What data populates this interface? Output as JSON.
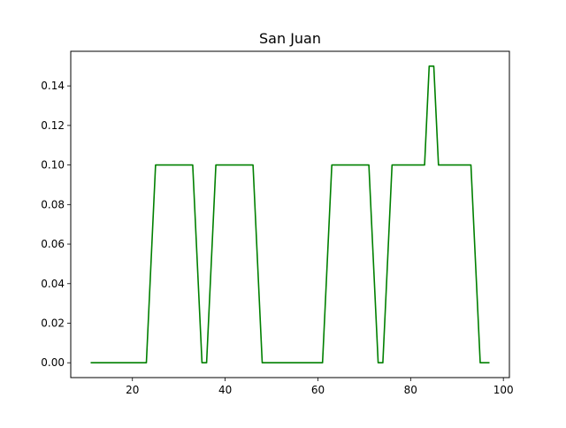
{
  "chart_data": {
    "type": "line",
    "title": "San Juan",
    "xlabel": "",
    "ylabel": "",
    "xlim": [
      6.7,
      101.3
    ],
    "ylim": [
      -0.0075,
      0.1575
    ],
    "grid": false,
    "x_ticks": [
      {
        "value": 20,
        "label": "20"
      },
      {
        "value": 40,
        "label": "40"
      },
      {
        "value": 60,
        "label": "60"
      },
      {
        "value": 80,
        "label": "80"
      },
      {
        "value": 100,
        "label": "100"
      }
    ],
    "y_ticks": [
      {
        "value": 0.0,
        "label": "0.00"
      },
      {
        "value": 0.02,
        "label": "0.02"
      },
      {
        "value": 0.04,
        "label": "0.04"
      },
      {
        "value": 0.06,
        "label": "0.06"
      },
      {
        "value": 0.08,
        "label": "0.08"
      },
      {
        "value": 0.1,
        "label": "0.10"
      },
      {
        "value": 0.12,
        "label": "0.12"
      },
      {
        "value": 0.14,
        "label": "0.14"
      }
    ],
    "series": [
      {
        "color": "#008000",
        "x": [
          11,
          23,
          25,
          33,
          35,
          36,
          38,
          46,
          48,
          61,
          63,
          71,
          73,
          74,
          76,
          83,
          84,
          85,
          86,
          93,
          95,
          97
        ],
        "y": [
          0,
          0,
          0.1,
          0.1,
          0,
          0,
          0.1,
          0.1,
          0,
          0,
          0.1,
          0.1,
          0,
          0,
          0.1,
          0.1,
          0.15,
          0.15,
          0.1,
          0.1,
          0,
          0
        ]
      }
    ]
  }
}
